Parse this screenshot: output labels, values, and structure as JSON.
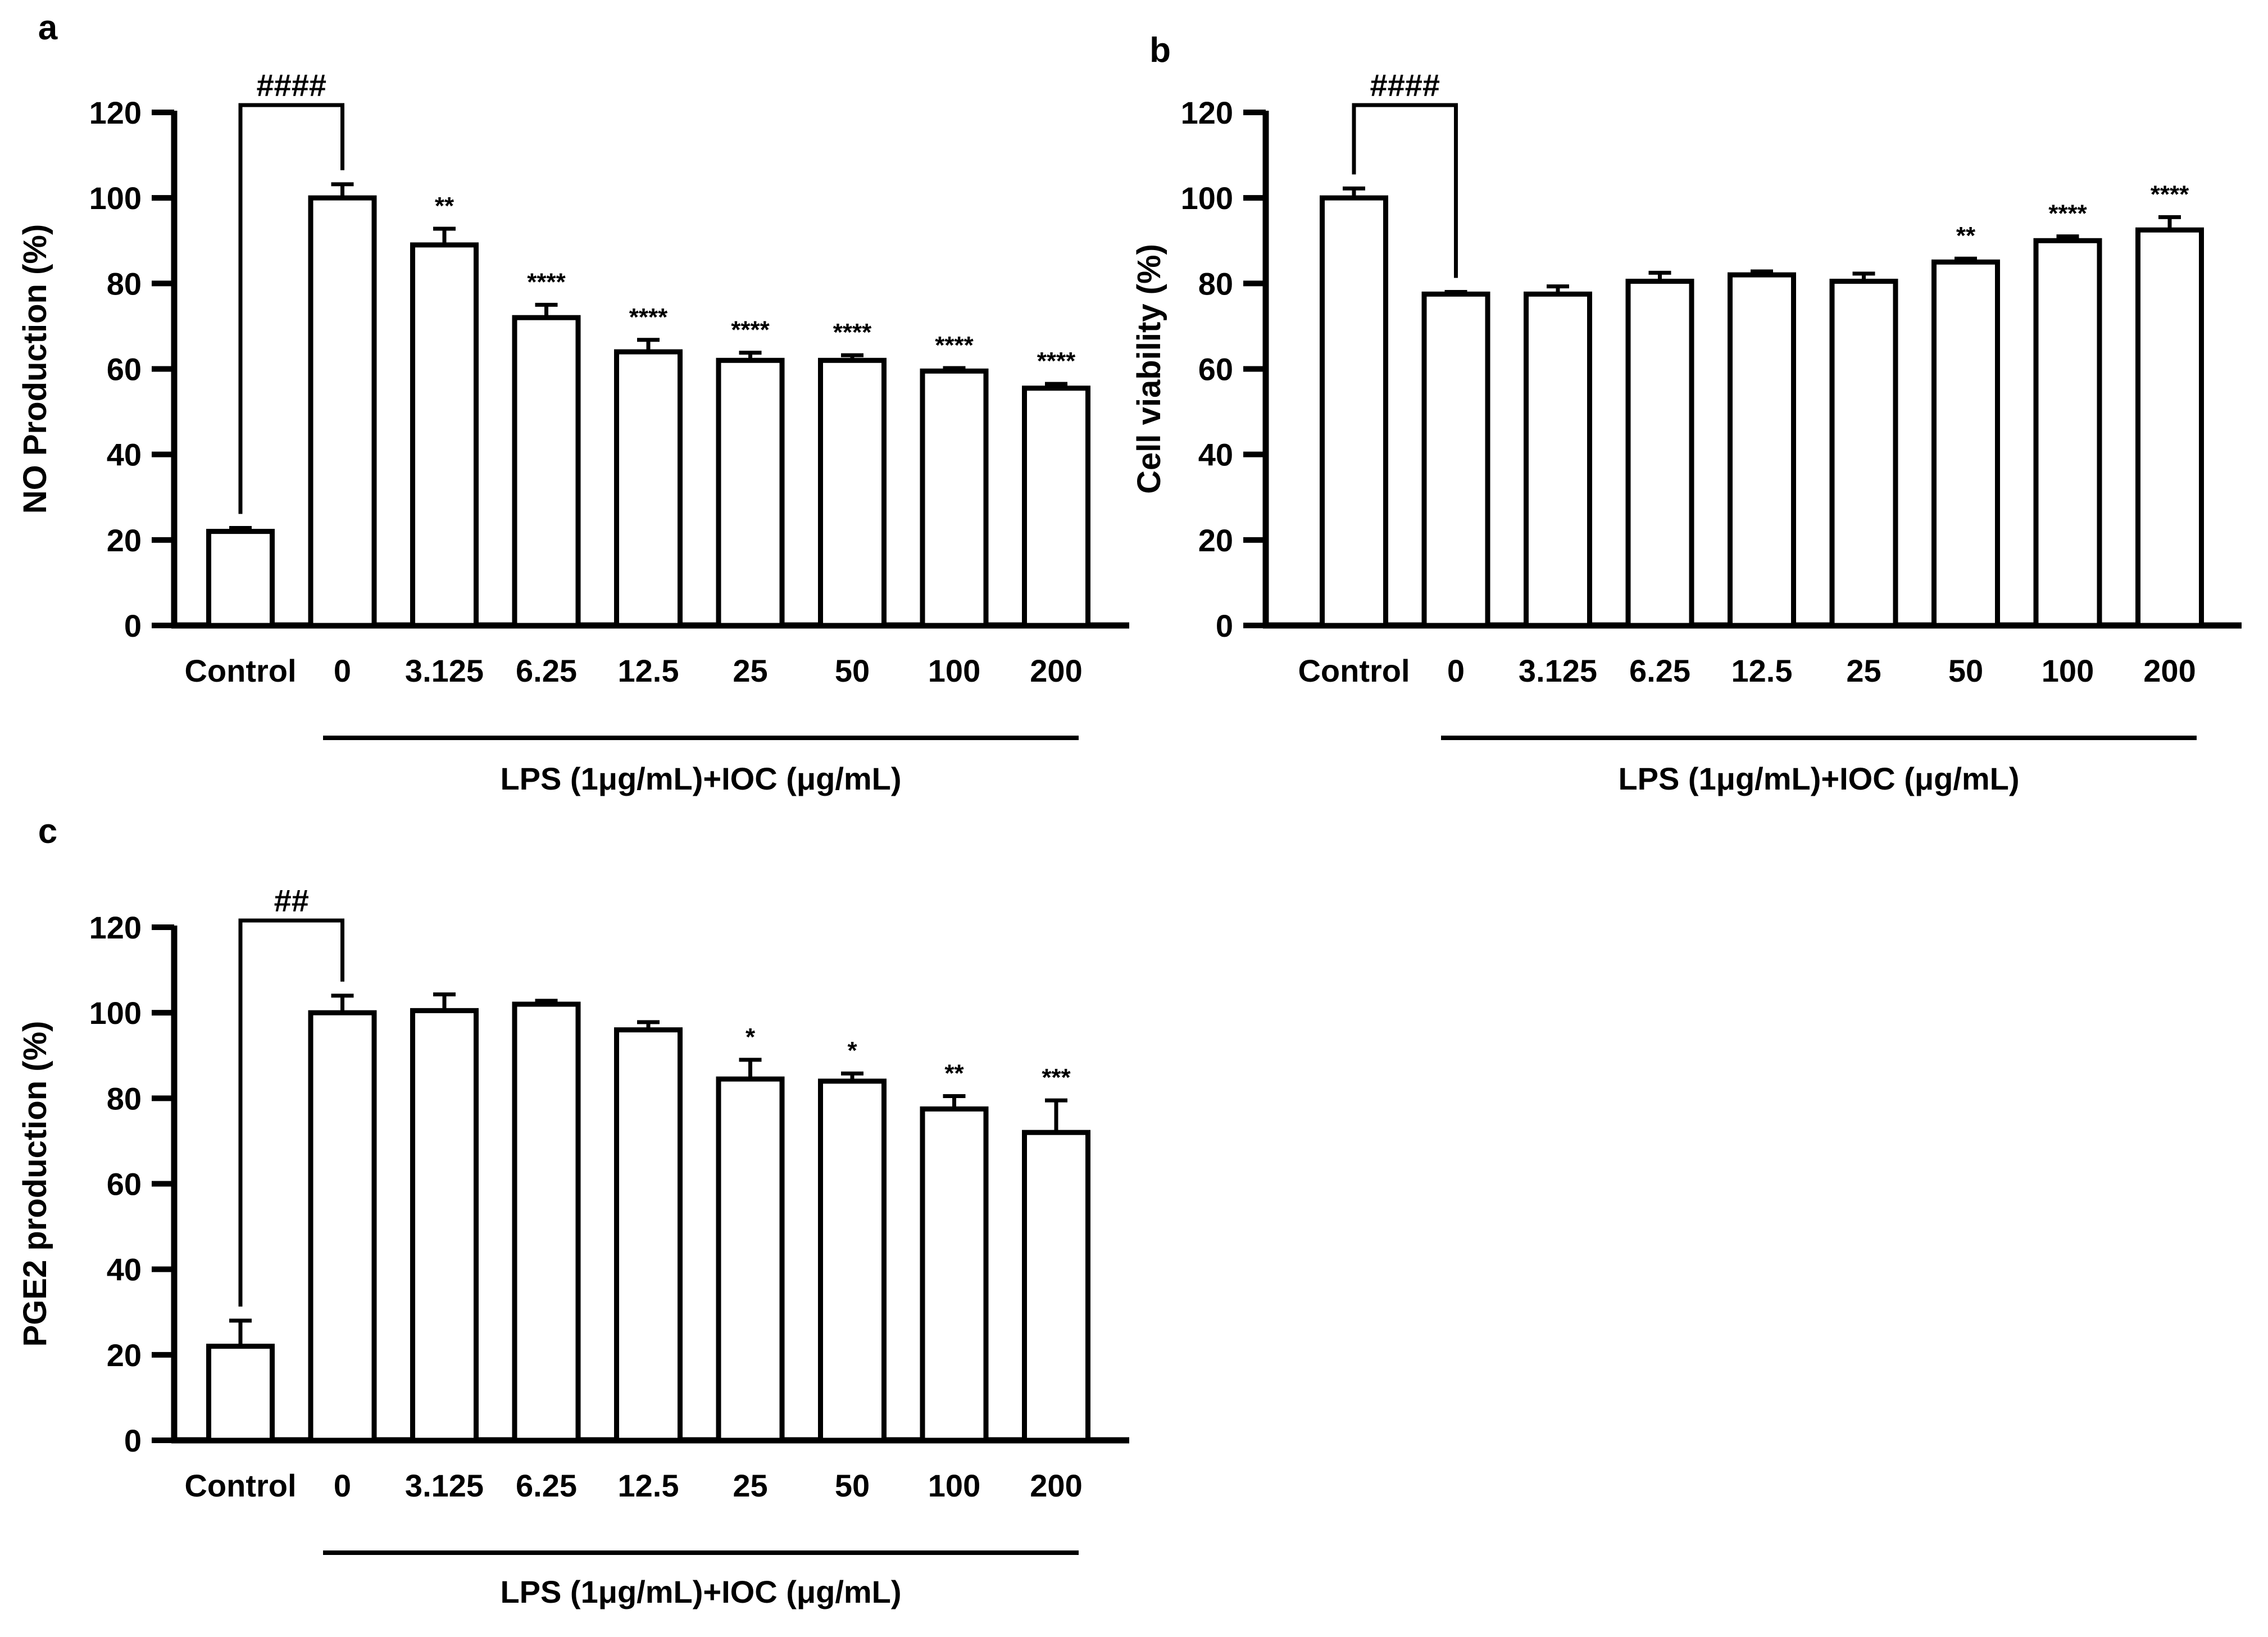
{
  "figure": {
    "background": "#ffffff",
    "bar_fill": "#ffffff",
    "stroke": "#000000"
  },
  "chart_data": [
    {
      "panel": "a",
      "type": "bar",
      "ylabel": "NO Production (%)",
      "xlabel": "",
      "group_label": "LPS (1μg/mL)+IOC (μg/mL)",
      "categories": [
        "Control",
        "0",
        "3.125",
        "6.25",
        "12.5",
        "25",
        "50",
        "100",
        "200"
      ],
      "values": [
        22,
        100,
        89,
        72,
        64,
        62,
        62,
        59.5,
        55.5
      ],
      "errors": [
        0.8,
        3.2,
        3.8,
        3.0,
        2.8,
        1.8,
        1.2,
        0.7,
        1.0
      ],
      "significance": [
        "",
        "",
        "**",
        "****",
        "****",
        "****",
        "****",
        "****",
        "****"
      ],
      "bracket": {
        "label": "####",
        "from": 0,
        "to": 1
      },
      "ylim": [
        0,
        120
      ],
      "yticks": [
        0,
        20,
        40,
        60,
        80,
        100,
        120
      ],
      "grid": false
    },
    {
      "panel": "b",
      "type": "bar",
      "ylabel": "Cell viability (%)",
      "xlabel": "",
      "group_label": "LPS (1μg/mL)+IOC (μg/mL)",
      "categories": [
        "Control",
        "0",
        "3.125",
        "6.25",
        "12.5",
        "25",
        "50",
        "100",
        "200"
      ],
      "values": [
        100,
        77.5,
        77.5,
        80.5,
        82,
        80.5,
        85,
        90,
        92.5
      ],
      "errors": [
        2.2,
        0.5,
        1.8,
        2.0,
        0.8,
        1.8,
        0.8,
        1.0,
        3.0
      ],
      "significance": [
        "",
        "",
        "",
        "",
        "",
        "",
        "**",
        "****",
        "****"
      ],
      "bracket": {
        "label": "####",
        "from": 0,
        "to": 1
      },
      "ylim": [
        0,
        120
      ],
      "yticks": [
        0,
        20,
        40,
        60,
        80,
        100,
        120
      ],
      "grid": false
    },
    {
      "panel": "c",
      "type": "bar",
      "ylabel": "PGE2 production (%)",
      "xlabel": "",
      "group_label": "LPS (1μg/mL)+IOC (μg/mL)",
      "categories": [
        "Control",
        "0",
        "3.125",
        "6.25",
        "12.5",
        "25",
        "50",
        "100",
        "200"
      ],
      "values": [
        22,
        100,
        100.5,
        102,
        96,
        84.5,
        84,
        77.5,
        72
      ],
      "errors": [
        6.0,
        4.0,
        3.8,
        0.8,
        1.8,
        4.5,
        1.8,
        3.0,
        7.5
      ],
      "significance": [
        "",
        "",
        "",
        "",
        "",
        "*",
        "*",
        "**",
        "***"
      ],
      "bracket": {
        "label": "##",
        "from": 0,
        "to": 1
      },
      "ylim": [
        0,
        120
      ],
      "yticks": [
        0,
        20,
        40,
        60,
        80,
        100,
        120
      ],
      "grid": false
    }
  ]
}
